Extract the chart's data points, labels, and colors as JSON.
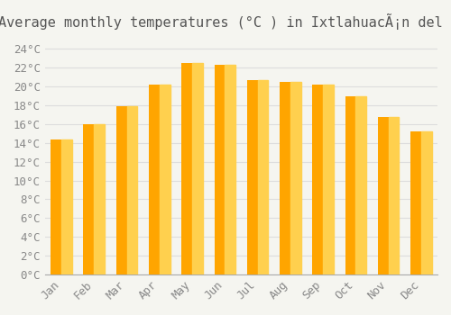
{
  "title": "Average monthly temperatures (°C ) in IxtlahuacÃ¡n del RÃ­o",
  "months": [
    "Jan",
    "Feb",
    "Mar",
    "Apr",
    "May",
    "Jun",
    "Jul",
    "Aug",
    "Sep",
    "Oct",
    "Nov",
    "Dec"
  ],
  "values": [
    14.4,
    16.0,
    17.9,
    20.2,
    22.5,
    22.3,
    20.7,
    20.5,
    20.2,
    19.0,
    16.8,
    15.2
  ],
  "bar_color_left": "#FFA500",
  "bar_color_right": "#FFD04E",
  "background_color": "#F5F5F0",
  "grid_color": "#DDDDDD",
  "yticks": [
    0,
    2,
    4,
    6,
    8,
    10,
    12,
    14,
    16,
    18,
    20,
    22,
    24
  ],
  "ylim": [
    0,
    25
  ],
  "title_fontsize": 11,
  "tick_fontsize": 9,
  "font_family": "monospace"
}
